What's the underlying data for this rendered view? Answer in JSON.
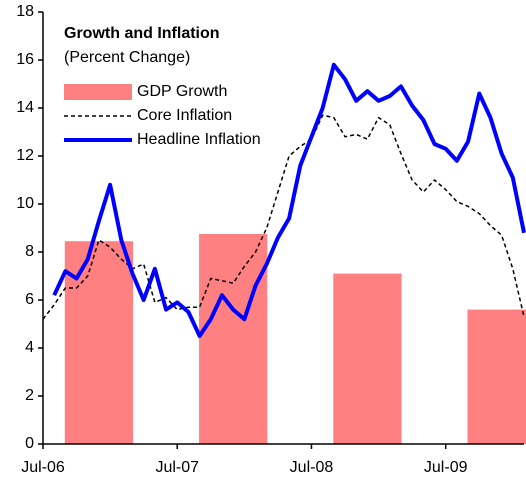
{
  "chart_data": {
    "type": "combo",
    "title": "Growth and Inflation",
    "subtitle": "(Percent Change)",
    "x": [
      "2006-07",
      "2006-08",
      "2006-09",
      "2006-10",
      "2006-11",
      "2006-12",
      "2007-01",
      "2007-02",
      "2007-03",
      "2007-04",
      "2007-05",
      "2007-06",
      "2007-07",
      "2007-08",
      "2007-09",
      "2007-10",
      "2007-11",
      "2007-12",
      "2008-01",
      "2008-02",
      "2008-03",
      "2008-04",
      "2008-05",
      "2008-06",
      "2008-07",
      "2008-08",
      "2008-09",
      "2008-10",
      "2008-11",
      "2008-12",
      "2009-01",
      "2009-02",
      "2009-03",
      "2009-04",
      "2009-05",
      "2009-06",
      "2009-07",
      "2009-08",
      "2009-09",
      "2009-10",
      "2009-11",
      "2009-12",
      "2010-01",
      "2010-02"
    ],
    "xlim": [
      "2006-07",
      "2010-02"
    ],
    "xticks": [
      {
        "value": "2006-07",
        "label": "Jul-06"
      },
      {
        "value": "2007-07",
        "label": "Jul-07"
      },
      {
        "value": "2008-07",
        "label": "Jul-08"
      },
      {
        "value": "2009-07",
        "label": "Jul-09"
      }
    ],
    "ylim": [
      0,
      18
    ],
    "yticks": [
      0,
      2,
      4,
      6,
      8,
      10,
      12,
      14,
      16,
      18
    ],
    "grid": false,
    "legend": "top-left",
    "series": [
      {
        "name": "GDP Growth",
        "type": "bar",
        "color": "#ff8080",
        "x": [
          "2006-12",
          "2007-12",
          "2008-12",
          "2009-12"
        ],
        "values": [
          8.45,
          8.75,
          7.1,
          5.6
        ]
      },
      {
        "name": "Core Inflation",
        "type": "line",
        "style": "dashed",
        "color": "#000000",
        "values": [
          5.2,
          5.8,
          6.5,
          6.5,
          7.0,
          8.5,
          8.2,
          7.7,
          7.3,
          7.5,
          5.9,
          6.1,
          5.6,
          5.7,
          5.7,
          6.9,
          6.8,
          6.7,
          7.4,
          8.0,
          9.0,
          10.5,
          12.0,
          12.4,
          12.7,
          13.7,
          13.6,
          12.8,
          12.9,
          12.7,
          13.6,
          13.3,
          12.1,
          11.0,
          10.5,
          11.0,
          10.6,
          10.1,
          9.9,
          9.6,
          9.1,
          8.7,
          7.3,
          5.3
        ]
      },
      {
        "name": "Headline Inflation",
        "type": "line",
        "style": "solid",
        "color": "#0000ff",
        "values": [
          null,
          6.2,
          7.2,
          6.9,
          7.7,
          9.3,
          10.8,
          8.5,
          7.1,
          6.0,
          7.3,
          5.6,
          5.9,
          5.5,
          4.5,
          5.2,
          6.2,
          5.6,
          5.2,
          6.6,
          7.5,
          8.6,
          9.4,
          11.6,
          12.8,
          14.0,
          15.8,
          15.2,
          14.3,
          14.7,
          14.3,
          14.5,
          14.9,
          14.1,
          13.5,
          12.5,
          12.3,
          11.8,
          12.6,
          14.6,
          13.6,
          12.1,
          11.1,
          8.8
        ]
      }
    ]
  }
}
